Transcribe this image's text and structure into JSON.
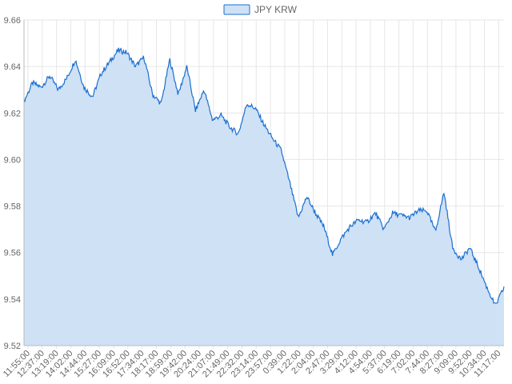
{
  "chart_data": {
    "type": "area",
    "legend": {
      "position": "top-center",
      "label": "JPY KRW"
    },
    "colors": {
      "line": "#1a6fd1",
      "fill": "#cfe1f5",
      "grid": "#e6e6e6",
      "axis": "#666666"
    },
    "grid": true,
    "ylim": [
      9.52,
      9.66
    ],
    "yticks": [
      "9.52",
      "9.54",
      "9.56",
      "9.58",
      "9.60",
      "9.62",
      "9.64",
      "9.66"
    ],
    "xticks": [
      "11:55:00",
      "12:37:00",
      "13:19:00",
      "14:02:00",
      "14:44:00",
      "15:27:00",
      "16:09:00",
      "16:52:00",
      "17:34:00",
      "18:17:00",
      "18:59:00",
      "19:42:00",
      "20:24:00",
      "21:07:00",
      "21:49:00",
      "22:32:00",
      "23:14:00",
      "23:57:00",
      "0:39:00",
      "1:22:00",
      "2:04:00",
      "2:47:00",
      "3:29:00",
      "4:12:00",
      "4:54:00",
      "5:37:00",
      "6:19:00",
      "7:02:00",
      "7:44:00",
      "8:27:00",
      "9:09:00",
      "9:52:00",
      "10:34:00",
      "11:17:00"
    ],
    "series": [
      {
        "name": "JPY KRW",
        "x_tick_positions": [
          0,
          1,
          2,
          3,
          4,
          5,
          6,
          7,
          8,
          9,
          10,
          11,
          12,
          13,
          14,
          15,
          16,
          17,
          18,
          19,
          20,
          21,
          22,
          23,
          24,
          25,
          26,
          27,
          28,
          29,
          30,
          31,
          32,
          33
        ],
        "values": [
          9.625,
          9.633,
          9.631,
          9.636,
          9.63,
          9.635,
          9.643,
          9.631,
          9.627,
          9.637,
          9.642,
          9.647,
          9.646,
          9.64,
          9.644,
          9.628,
          9.624,
          9.643,
          9.628,
          9.64,
          9.621,
          9.63,
          9.617,
          9.619,
          9.614,
          9.611,
          9.624,
          9.622,
          9.615,
          9.609,
          9.604,
          9.59,
          9.575,
          9.584,
          9.577,
          9.571,
          9.559,
          9.566,
          9.571,
          9.574,
          9.573,
          9.577,
          9.57,
          9.577,
          9.576,
          9.575,
          9.578,
          9.578,
          9.569,
          9.586,
          9.562,
          9.557,
          9.562,
          9.554,
          9.545,
          9.537,
          9.545
        ]
      }
    ]
  }
}
